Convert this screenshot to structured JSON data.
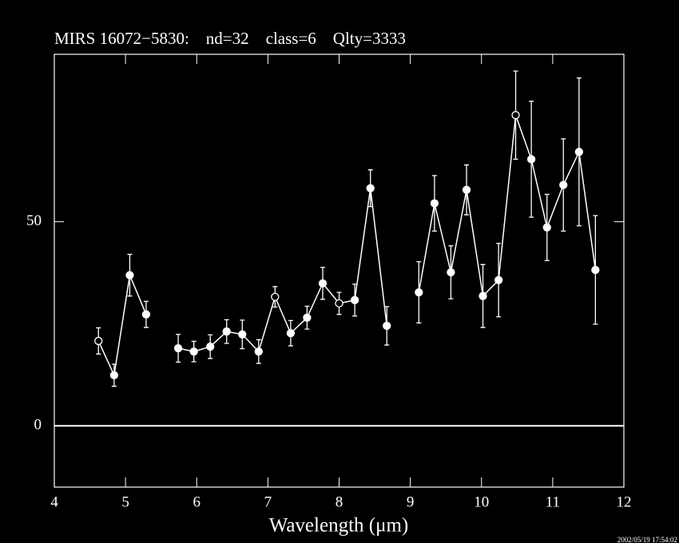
{
  "chart_data": {
    "type": "errorbar-line",
    "title": "MIRS 16072−5830:    nd=32    class=6    Qlty=3333",
    "xlabel": "Wavelength (μm)",
    "timestamp": "2002/05/19 17:54:02",
    "x": [
      4.62,
      4.84,
      5.06,
      5.29,
      null,
      5.74,
      5.96,
      6.19,
      6.42,
      6.64,
      6.87,
      7.1,
      7.32,
      7.55,
      7.77,
      8.0,
      8.22,
      8.44,
      8.67,
      null,
      9.12,
      9.34,
      9.57,
      9.79,
      10.02,
      10.24,
      10.48,
      10.7,
      10.92,
      11.15,
      11.37,
      11.6
    ],
    "values": [
      20.8,
      12.4,
      36.9,
      27.3,
      null,
      19.0,
      18.2,
      19.4,
      23.1,
      22.4,
      18.2,
      31.6,
      22.7,
      26.5,
      34.9,
      30.0,
      30.8,
      58.2,
      24.5,
      null,
      32.7,
      54.5,
      37.6,
      57.8,
      31.8,
      35.7,
      76.1,
      65.3,
      48.6,
      59.0,
      67.1,
      38.2
    ],
    "errors": [
      3.2,
      2.7,
      5.1,
      3.2,
      null,
      3.4,
      2.5,
      2.9,
      2.9,
      3.5,
      2.9,
      2.5,
      3.1,
      2.8,
      3.9,
      2.7,
      3.9,
      4.5,
      4.7,
      null,
      7.5,
      6.8,
      6.5,
      6.1,
      7.7,
      9.0,
      10.8,
      14.2,
      8.1,
      11.3,
      18.1,
      13.3
    ],
    "marker_fill": [
      "#000000",
      "#ffffff",
      "#ffffff",
      "#ffffff",
      null,
      "#ffffff",
      "#ffffff",
      "#ffffff",
      "#ffffff",
      "#ffffff",
      "#ffffff",
      "#000000",
      "#ffffff",
      "#ffffff",
      "#ffffff",
      "#000000",
      "#ffffff",
      "#ffffff",
      "#ffffff",
      null,
      "#ffffff",
      "#ffffff",
      "#ffffff",
      "#ffffff",
      "#ffffff",
      "#ffffff",
      "#000000",
      "#ffffff",
      "#ffffff",
      "#ffffff",
      "#ffffff",
      "#ffffff"
    ],
    "color": "#ffffff",
    "xlim": [
      4,
      12
    ],
    "xticks": [
      4,
      5,
      6,
      7,
      8,
      9,
      10,
      11,
      12
    ],
    "ylim": [
      -15,
      91
    ],
    "yticks": [
      0,
      50
    ],
    "zero_line": true
  }
}
